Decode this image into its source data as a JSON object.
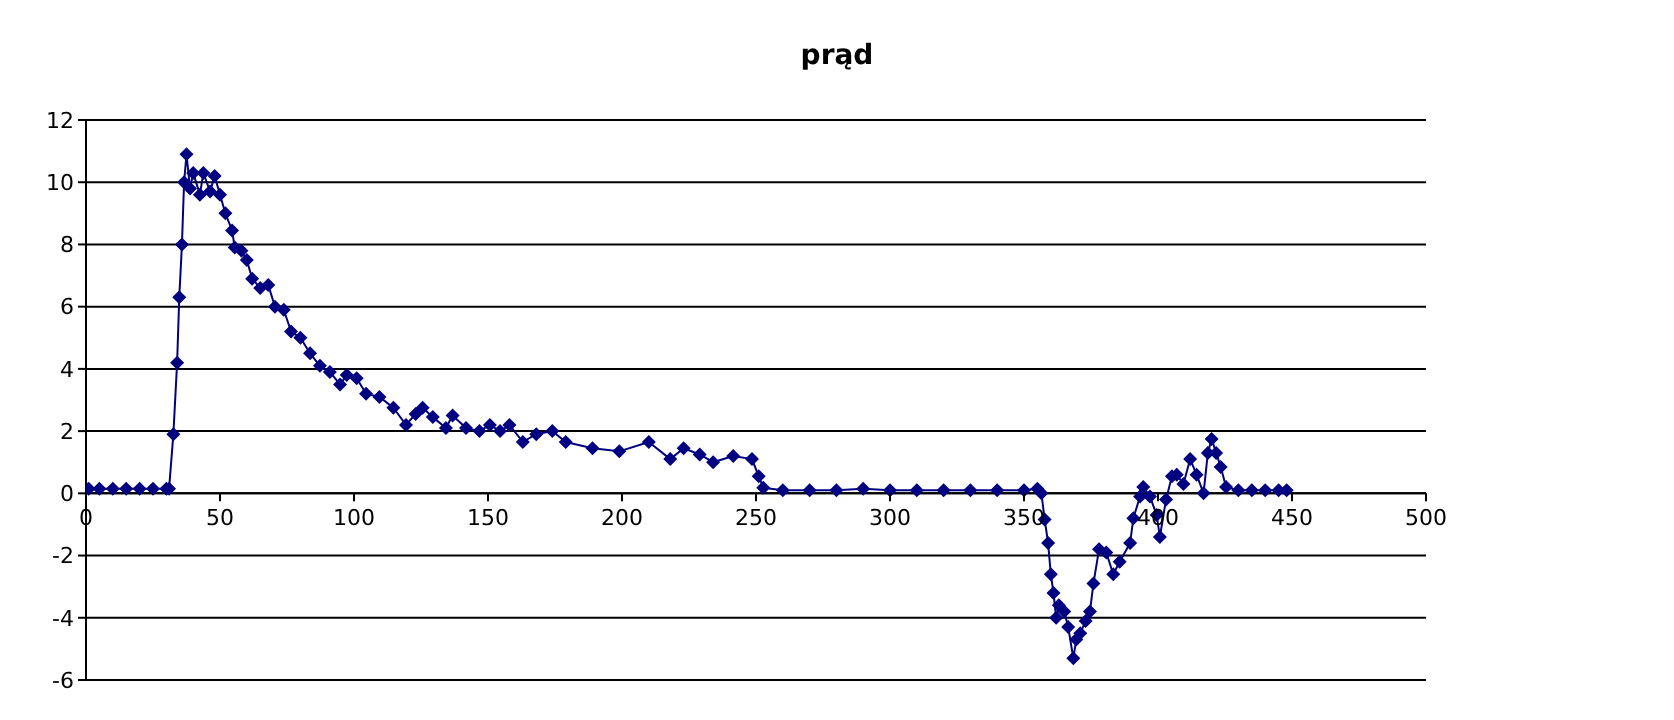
{
  "chart_data": {
    "type": "line",
    "title": "prąd",
    "marker": "diamond",
    "grid": "y",
    "xlim": [
      0,
      500
    ],
    "xticks": [
      0,
      50,
      100,
      150,
      200,
      250,
      300,
      350,
      400,
      450,
      500
    ],
    "ylim": [
      -6,
      12
    ],
    "yticks": [
      -6,
      -4,
      -2,
      0,
      2,
      4,
      6,
      8,
      10,
      12
    ],
    "series": [
      {
        "color": "#000080",
        "x": [
          1,
          5,
          10,
          15,
          20,
          25,
          30,
          31,
          32.6,
          34,
          34.8,
          35.8,
          36.6,
          37.5,
          38.8,
          40,
          42.5,
          43.8,
          46.3,
          48,
          50,
          52,
          54.5,
          55.5,
          58,
          60,
          62,
          65,
          68,
          70.5,
          73.8,
          76.5,
          80,
          83.6,
          87.3,
          91,
          94.8,
          97.3,
          101,
          104.5,
          109.5,
          114.7,
          119.4,
          123,
          125.6,
          129.4,
          134.3,
          136.8,
          141.8,
          146.8,
          150.7,
          154.5,
          158,
          163,
          168,
          174,
          179,
          189,
          199,
          210,
          218,
          223,
          229,
          234,
          241.5,
          248.5,
          251,
          252.7,
          260,
          270,
          280,
          290,
          300,
          310,
          320,
          330,
          340,
          350,
          355,
          356.5,
          357.7,
          359,
          360,
          361,
          362,
          363,
          365,
          366.5,
          368.4,
          369.5,
          371,
          373,
          374.6,
          375.9,
          378,
          380.7,
          383.3,
          385.7,
          389.6,
          390.8,
          393.3,
          394.5,
          397,
          399.5,
          400.7,
          403,
          405.2,
          407,
          409.5,
          412,
          414.4,
          417,
          418.6,
          420,
          421.7,
          423.4,
          425.4,
          430,
          435,
          440,
          445,
          448
        ],
        "values": [
          0.15,
          0.15,
          0.15,
          0.15,
          0.15,
          0.15,
          0.15,
          0.15,
          1.9,
          4.2,
          6.3,
          8.0,
          10.0,
          10.9,
          9.8,
          10.3,
          9.6,
          10.3,
          9.7,
          10.2,
          9.6,
          9.0,
          8.45,
          7.9,
          7.8,
          7.5,
          6.9,
          6.6,
          6.7,
          6.0,
          5.9,
          5.2,
          5.0,
          4.5,
          4.1,
          3.9,
          3.5,
          3.8,
          3.7,
          3.2,
          3.1,
          2.75,
          2.2,
          2.55,
          2.75,
          2.45,
          2.1,
          2.5,
          2.1,
          2.0,
          2.2,
          2.0,
          2.2,
          1.65,
          1.9,
          2.0,
          1.65,
          1.45,
          1.35,
          1.65,
          1.1,
          1.45,
          1.25,
          1.0,
          1.2,
          1.1,
          0.55,
          0.18,
          0.1,
          0.1,
          0.1,
          0.15,
          0.1,
          0.1,
          0.1,
          0.1,
          0.1,
          0.1,
          0.15,
          0.0,
          -0.84,
          -1.6,
          -2.6,
          -3.2,
          -4.0,
          -3.6,
          -3.8,
          -4.3,
          -5.3,
          -4.7,
          -4.5,
          -4.1,
          -3.8,
          -2.9,
          -1.8,
          -1.9,
          -2.6,
          -2.2,
          -1.6,
          -0.8,
          -0.1,
          0.2,
          -0.1,
          -0.7,
          -1.4,
          -0.2,
          0.55,
          0.6,
          0.3,
          1.1,
          0.6,
          0.0,
          1.3,
          1.75,
          1.3,
          0.85,
          0.2,
          0.1,
          0.1,
          0.1,
          0.1,
          0.1
        ]
      }
    ]
  }
}
